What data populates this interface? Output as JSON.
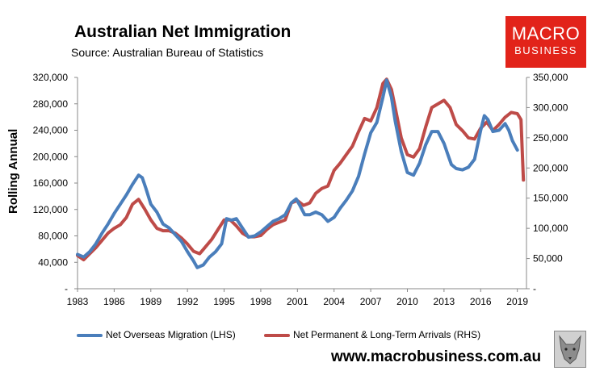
{
  "title": "Australian Net Immigration",
  "subtitle": "Source: Australian Bureau of Statistics",
  "logo": {
    "line1": "MACRO",
    "line2": "BUSINESS"
  },
  "website": "www.macrobusiness.com.au",
  "colors": {
    "nom": "#4a7ebb",
    "plta": "#be4b48",
    "brand": "#e2231a",
    "plot_bg": "#ffffff"
  },
  "chart_data": {
    "type": "line",
    "ylabel": "Rolling Annual",
    "xlim": [
      1983,
      2019.75
    ],
    "x_ticks": [
      "1983",
      "1986",
      "1989",
      "1992",
      "1995",
      "1998",
      "2001",
      "2004",
      "2007",
      "2010",
      "2013",
      "2016",
      "2019"
    ],
    "y_left": {
      "lim": [
        0,
        320000
      ],
      "ticks": [
        "-",
        "40,000",
        "80,000",
        "120,000",
        "160,000",
        "200,000",
        "240,000",
        "280,000",
        "320,000"
      ]
    },
    "y_right": {
      "lim": [
        0,
        350000
      ],
      "ticks": [
        "-",
        "50,000",
        "100,000",
        "150,000",
        "200,000",
        "250,000",
        "300,000",
        "350,000"
      ]
    },
    "grid": false,
    "legend_position": "bottom",
    "series": [
      {
        "name": "Net Overseas Migration (LHS)",
        "axis": "left",
        "x": [
          1983.0,
          1983.5,
          1984.0,
          1984.5,
          1985.0,
          1985.5,
          1986.0,
          1986.5,
          1987.0,
          1987.5,
          1988.0,
          1988.3,
          1988.6,
          1989.0,
          1989.5,
          1990.0,
          1990.5,
          1991.0,
          1991.5,
          1992.0,
          1992.5,
          1992.8,
          1993.3,
          1993.8,
          1994.3,
          1994.8,
          1995.2,
          1995.6,
          1996.0,
          1996.5,
          1997.0,
          1997.5,
          1998.0,
          1998.5,
          1999.0,
          1999.5,
          2000.0,
          2000.5,
          2000.9,
          2001.2,
          2001.6,
          2002.0,
          2002.5,
          2003.0,
          2003.5,
          2004.0,
          2004.5,
          2005.0,
          2005.5,
          2006.0,
          2006.5,
          2007.0,
          2007.5,
          2008.0,
          2008.3,
          2008.7,
          2009.0,
          2009.5,
          2010.0,
          2010.5,
          2011.0,
          2011.5,
          2012.0,
          2012.5,
          2013.0,
          2013.3,
          2013.6,
          2014.0,
          2014.5,
          2015.0,
          2015.5,
          2016.0,
          2016.3,
          2016.6,
          2017.0,
          2017.5,
          2018.0,
          2018.3,
          2018.6,
          2019.0
        ],
        "values": [
          52000,
          48000,
          56000,
          68000,
          84000,
          98000,
          114000,
          128000,
          142000,
          158000,
          172000,
          168000,
          152000,
          128000,
          116000,
          98000,
          92000,
          82000,
          72000,
          56000,
          42000,
          32000,
          36000,
          48000,
          56000,
          68000,
          106000,
          104000,
          106000,
          92000,
          78000,
          80000,
          86000,
          94000,
          102000,
          106000,
          112000,
          130000,
          136000,
          126000,
          112000,
          112000,
          116000,
          112000,
          102000,
          108000,
          122000,
          134000,
          148000,
          170000,
          204000,
          236000,
          252000,
          290000,
          316000,
          290000,
          254000,
          208000,
          176000,
          172000,
          190000,
          218000,
          238000,
          238000,
          220000,
          204000,
          188000,
          182000,
          180000,
          184000,
          196000,
          240000,
          262000,
          256000,
          238000,
          240000,
          250000,
          240000,
          224000,
          210000
        ]
      },
      {
        "name": "Net Permanent & Long-Term Arrivals (RHS)",
        "axis": "right",
        "x": [
          1983.0,
          1983.5,
          1984.0,
          1984.5,
          1985.0,
          1985.5,
          1986.0,
          1986.5,
          1987.0,
          1987.5,
          1988.0,
          1988.5,
          1989.0,
          1989.5,
          1990.0,
          1990.5,
          1991.0,
          1991.5,
          1992.0,
          1992.5,
          1993.0,
          1993.5,
          1994.0,
          1994.5,
          1995.0,
          1995.5,
          1996.0,
          1996.5,
          1997.0,
          1997.5,
          1998.0,
          1998.5,
          1999.0,
          1999.5,
          2000.0,
          2000.5,
          2001.0,
          2001.5,
          2002.0,
          2002.5,
          2003.0,
          2003.5,
          2004.0,
          2004.5,
          2005.0,
          2005.5,
          2006.0,
          2006.5,
          2007.0,
          2007.5,
          2008.0,
          2008.3,
          2008.7,
          2009.0,
          2009.5,
          2010.0,
          2010.5,
          2011.0,
          2011.5,
          2012.0,
          2012.5,
          2013.0,
          2013.5,
          2014.0,
          2014.5,
          2015.0,
          2015.5,
          2016.0,
          2016.5,
          2017.0,
          2017.5,
          2018.0,
          2018.5,
          2019.0,
          2019.3,
          2019.5
        ],
        "values": [
          55000,
          48000,
          58000,
          68000,
          80000,
          92000,
          100000,
          106000,
          118000,
          140000,
          148000,
          132000,
          114000,
          100000,
          96000,
          96000,
          92000,
          84000,
          74000,
          62000,
          58000,
          70000,
          82000,
          98000,
          114000,
          114000,
          104000,
          92000,
          86000,
          86000,
          88000,
          98000,
          106000,
          110000,
          114000,
          142000,
          146000,
          138000,
          142000,
          158000,
          166000,
          170000,
          196000,
          208000,
          222000,
          236000,
          260000,
          282000,
          278000,
          300000,
          340000,
          347000,
          330000,
          300000,
          250000,
          222000,
          218000,
          232000,
          268000,
          300000,
          306000,
          312000,
          300000,
          272000,
          262000,
          250000,
          248000,
          266000,
          276000,
          262000,
          272000,
          284000,
          292000,
          290000,
          280000,
          180000
        ]
      }
    ]
  }
}
